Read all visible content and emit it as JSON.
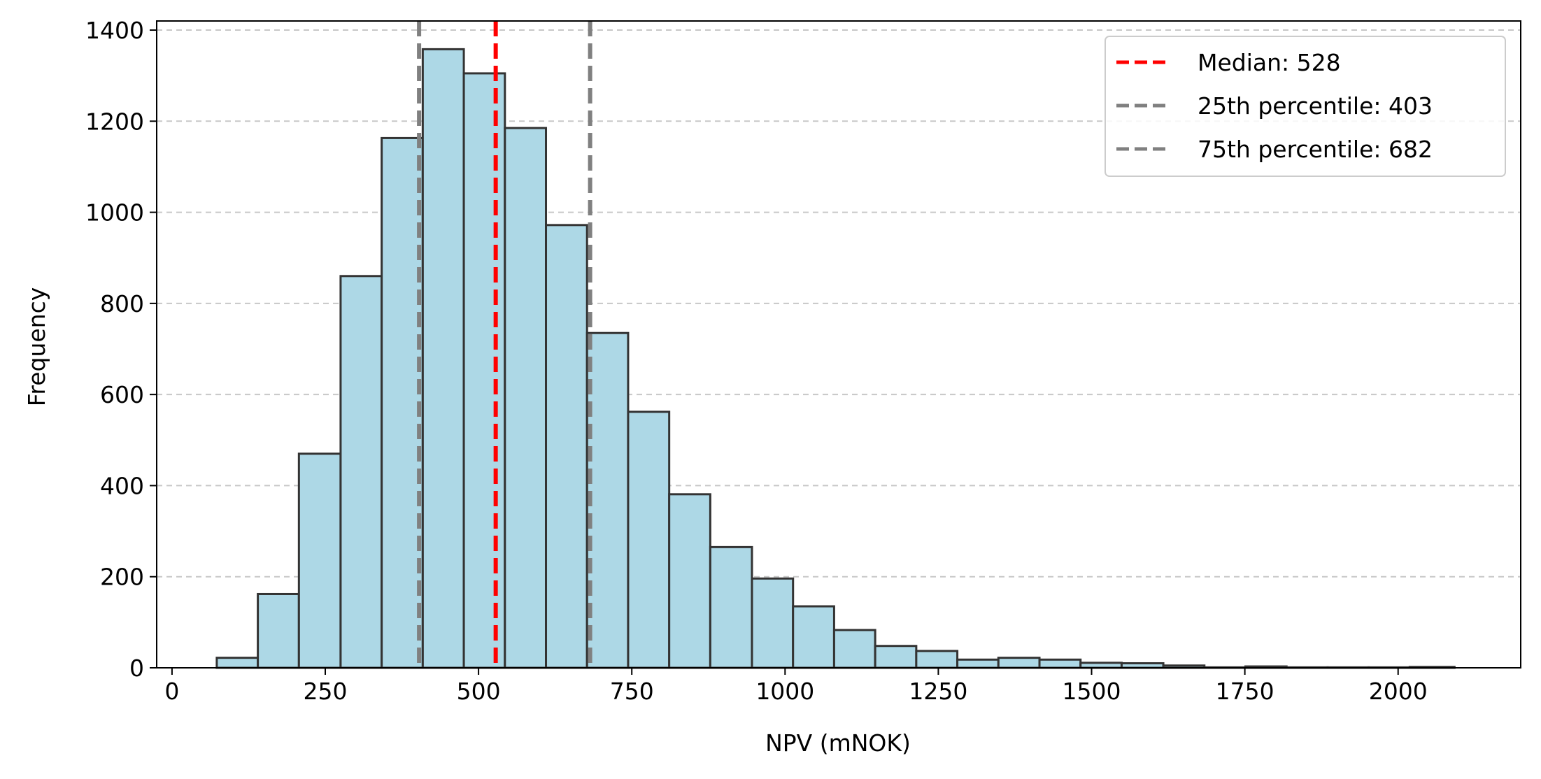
{
  "chart_data": {
    "type": "bar",
    "title": "",
    "xlabel": "NPV (mNOK)",
    "ylabel": "Frequency",
    "xlim": [
      -25,
      2200
    ],
    "ylim": [
      0,
      1420
    ],
    "xticks": [
      0,
      250,
      500,
      750,
      1000,
      1250,
      1500,
      1750,
      2000
    ],
    "yticks": [
      0,
      200,
      400,
      600,
      800,
      1000,
      1200,
      1400
    ],
    "grid": "y",
    "legend_position": "top-right",
    "bar_color": "#add8e6",
    "bar_edge_color": "#333333",
    "bin_edges": [
      73,
      140,
      207,
      275,
      342,
      409,
      476,
      543,
      610,
      677,
      744,
      811,
      878,
      946,
      1013,
      1080,
      1147,
      1214,
      1281,
      1348,
      1415,
      1482,
      1549,
      1617,
      1684,
      1751,
      1818,
      1885,
      1952,
      2019,
      2092
    ],
    "values": [
      22,
      162,
      470,
      860,
      1163,
      1358,
      1305,
      1185,
      972,
      735,
      562,
      381,
      265,
      196,
      135,
      83,
      48,
      37,
      18,
      22,
      18,
      11,
      10,
      5,
      1,
      3,
      1,
      1,
      1,
      2
    ],
    "reference_lines": [
      {
        "label": "Median: 528",
        "x": 528,
        "color": "#ff0000"
      },
      {
        "label": "25th percentile: 403",
        "x": 403,
        "color": "#808080"
      },
      {
        "label": "75th percentile: 682",
        "x": 682,
        "color": "#808080"
      }
    ]
  }
}
